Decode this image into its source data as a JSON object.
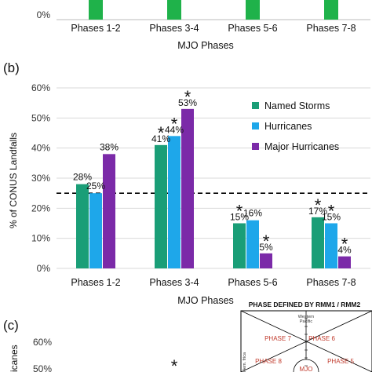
{
  "panel_top": {
    "ticks": [
      "0%"
    ],
    "categories": [
      "Phases 1-2",
      "Phases 3-4",
      "Phases 5-6",
      "Phases 7-8"
    ],
    "xlabel": "MJO Phases",
    "color": "#1fb24a"
  },
  "panel_b": {
    "label": "(b)",
    "legend": [
      "Named Storms",
      "Hurricanes",
      "Major Hurricanes"
    ],
    "xlabel": "MJO Phases",
    "ylabel": "% of CONUS Landfalls"
  },
  "chart_data": {
    "type": "bar",
    "categories": [
      "Phases 1-2",
      "Phases 3-4",
      "Phases 5-6",
      "Phases 7-8"
    ],
    "series": [
      {
        "name": "Named Storms",
        "values": [
          28,
          41,
          15,
          17
        ],
        "labels": [
          "28%",
          "41%",
          "15%",
          "17%"
        ],
        "stars": [
          false,
          true,
          true,
          true
        ],
        "color": "#1a9e77"
      },
      {
        "name": "Hurricanes",
        "values": [
          25,
          44,
          16,
          15
        ],
        "labels": [
          "25%",
          "44%",
          "16%",
          "15%"
        ],
        "stars": [
          false,
          true,
          false,
          true
        ],
        "color": "#1ea7ea"
      },
      {
        "name": "Major Hurricanes",
        "values": [
          38,
          53,
          5,
          4
        ],
        "labels": [
          "38%",
          "53%",
          "5%",
          "4%"
        ],
        "stars": [
          false,
          true,
          true,
          true
        ],
        "color": "#7b2aa8"
      }
    ],
    "ylim": [
      0,
      60
    ],
    "yticks": [
      "0%",
      "10%",
      "20%",
      "30%",
      "40%",
      "50%",
      "60%"
    ],
    "reference_line": 25,
    "xlabel": "MJO Phases",
    "ylabel": "% of CONUS Landfalls",
    "legend_position": "upper-right",
    "star_symbol": "*"
  },
  "panel_c": {
    "label": "(c)",
    "ylabel_partial": "icanes",
    "ticks": [
      "60%",
      "50%"
    ],
    "star": "*",
    "rmm": {
      "title": "PHASE DEFINED BY RMM1 / RMM2",
      "region_top": "Western",
      "region_top2": "Pacific",
      "phases": [
        "PHASE 7",
        "PHASE 6",
        "PHASE 8",
        "PHASE 5"
      ],
      "left_text": "Hem. frica",
      "center_text": "MJO"
    }
  }
}
